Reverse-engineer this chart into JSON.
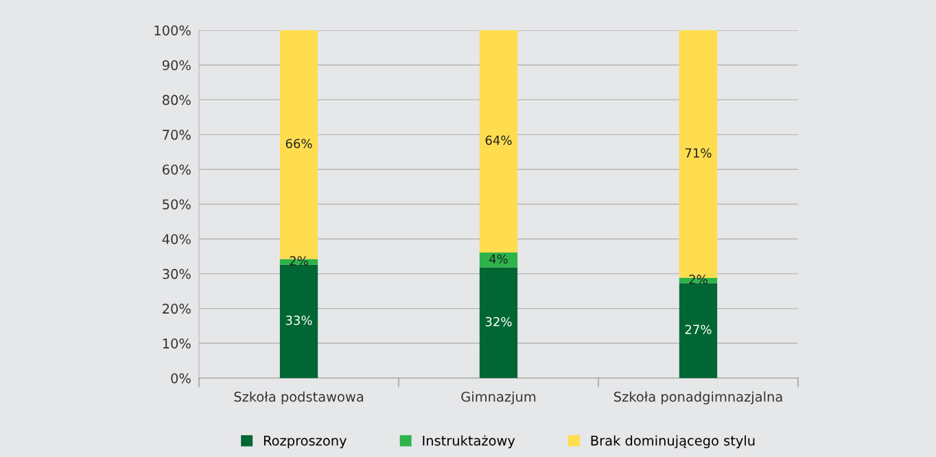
{
  "chart_data": {
    "type": "bar",
    "stacked": true,
    "categories": [
      "Szkoła podstawowa",
      "Gimnazjum",
      "Szkoła ponadgimnazjalna"
    ],
    "series": [
      {
        "name": "Rozproszony",
        "color": "#006633",
        "values": [
          32.6,
          31.8,
          27.3
        ],
        "value_labels": [
          "33%",
          "32%",
          "27%"
        ]
      },
      {
        "name": "Instruktażowy",
        "color": "#2db34a",
        "values": [
          1.6,
          4.3,
          1.5
        ],
        "value_labels": [
          "2%",
          "4%",
          "2%"
        ]
      },
      {
        "name": "Brak dominującego stylu",
        "color": "#ffdd4f",
        "values": [
          65.8,
          63.9,
          71.2
        ],
        "value_labels": [
          "66%",
          "64%",
          "71%"
        ]
      }
    ],
    "ylim": [
      0,
      100
    ],
    "yticks": [
      {
        "value": 0,
        "label": "0%"
      },
      {
        "value": 10,
        "label": "10%"
      },
      {
        "value": 20,
        "label": "20%"
      },
      {
        "value": 30,
        "label": "30%"
      },
      {
        "value": 40,
        "label": "40%"
      },
      {
        "value": 50,
        "label": "50%"
      },
      {
        "value": 60,
        "label": "60%"
      },
      {
        "value": 70,
        "label": "70%"
      },
      {
        "value": 80,
        "label": "80%"
      },
      {
        "value": 90,
        "label": "90%"
      },
      {
        "value": 100,
        "label": "100%"
      }
    ],
    "grid": "y",
    "legend": "bottom"
  }
}
